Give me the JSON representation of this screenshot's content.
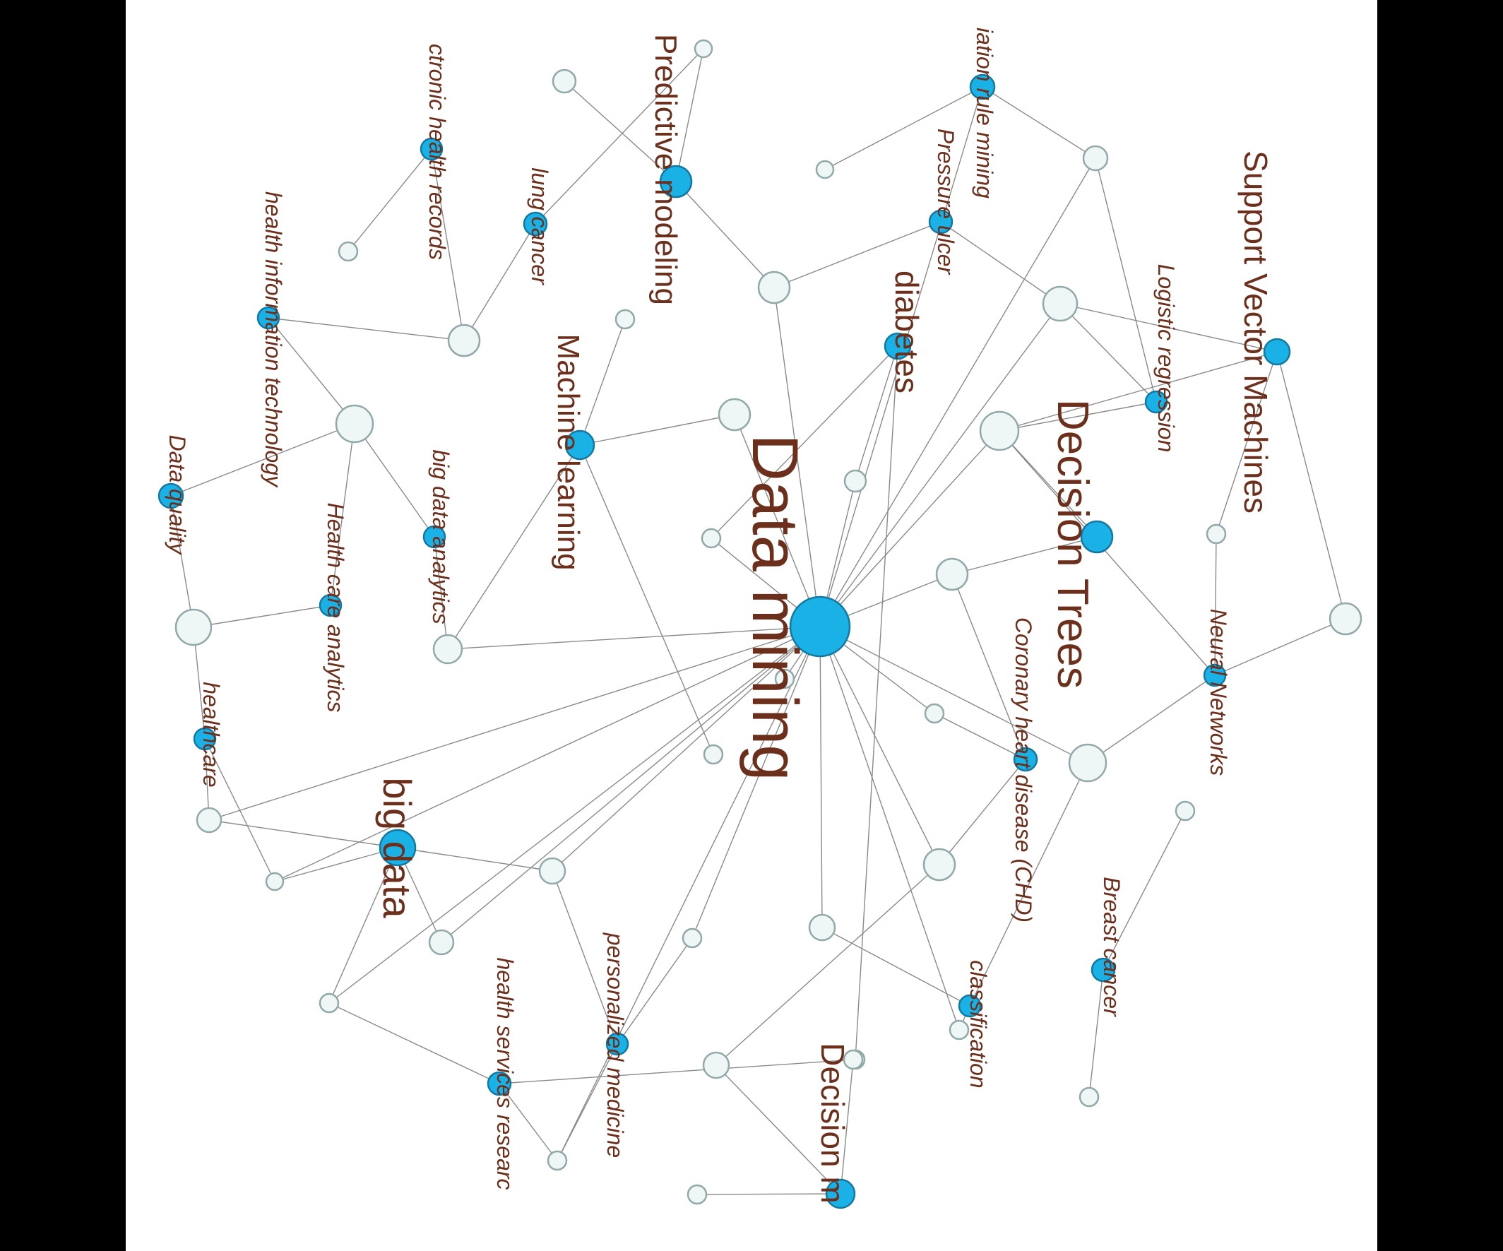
{
  "theme": {
    "background": "#000000",
    "canvas": "#ffffff",
    "node_hub": "#1ab2e6",
    "node_hub_stroke": "#1478a0",
    "node_leaf": "#eef6f6",
    "node_leaf_stroke": "#93a8a8",
    "edge": "#8a8a8a",
    "label": "#6b2f1c"
  },
  "nodes": [
    {
      "id": "dm",
      "label": "Data mining",
      "kind": "hub"
    },
    {
      "id": "dt",
      "label": "Decision Trees",
      "kind": "hub"
    },
    {
      "id": "svm",
      "label": "Support Vector Machines",
      "kind": "hub"
    },
    {
      "id": "ml",
      "label": "Machine learning",
      "kind": "hub"
    },
    {
      "id": "pm",
      "label": "Predictive modeling",
      "kind": "hub"
    },
    {
      "id": "bd",
      "label": "big data",
      "kind": "hub"
    },
    {
      "id": "dmk",
      "label": "Decision m",
      "kind": "hub"
    },
    {
      "id": "ar",
      "label": "iation rule mining",
      "kind": "hub"
    },
    {
      "id": "pu",
      "label": "Pressure ulcer",
      "kind": "hub"
    },
    {
      "id": "diab",
      "label": "diabetes",
      "kind": "hub"
    },
    {
      "id": "lr",
      "label": "Logistic regression",
      "kind": "hub"
    },
    {
      "id": "nn",
      "label": "Neural Networks",
      "kind": "hub"
    },
    {
      "id": "chd",
      "label": "Coronary heart disease (CHD)",
      "kind": "hub"
    },
    {
      "id": "bc",
      "label": "Breast cancer",
      "kind": "hub"
    },
    {
      "id": "cls",
      "label": "classification",
      "kind": "hub"
    },
    {
      "id": "lc",
      "label": "lung cancer",
      "kind": "hub"
    },
    {
      "id": "ehr",
      "label": "ctronic health records",
      "kind": "hub"
    },
    {
      "id": "hit",
      "label": "health information technology",
      "kind": "hub"
    },
    {
      "id": "bda",
      "label": "big data analytics",
      "kind": "hub"
    },
    {
      "id": "hca",
      "label": "Health care analytics",
      "kind": "hub"
    },
    {
      "id": "dq",
      "label": "Data quality",
      "kind": "hub"
    },
    {
      "id": "hc",
      "label": "healthcare",
      "kind": "hub"
    },
    {
      "id": "pmed",
      "label": "personalized medicine",
      "kind": "hub"
    },
    {
      "id": "hsr",
      "label": "health services researc",
      "kind": "hub"
    },
    {
      "id": "l01",
      "label": "",
      "kind": "leaf"
    },
    {
      "id": "l02",
      "label": "",
      "kind": "leaf"
    },
    {
      "id": "l03",
      "label": "",
      "kind": "leaf"
    },
    {
      "id": "l04",
      "label": "",
      "kind": "leaf"
    },
    {
      "id": "l05",
      "label": "",
      "kind": "leaf"
    },
    {
      "id": "l06",
      "label": "",
      "kind": "leaf"
    },
    {
      "id": "l07",
      "label": "",
      "kind": "leaf"
    },
    {
      "id": "l08",
      "label": "",
      "kind": "leaf"
    },
    {
      "id": "l09",
      "label": "",
      "kind": "leaf"
    },
    {
      "id": "l10",
      "label": "",
      "kind": "leaf"
    },
    {
      "id": "l11",
      "label": "",
      "kind": "leaf"
    },
    {
      "id": "l12",
      "label": "",
      "kind": "leaf"
    },
    {
      "id": "l13",
      "label": "",
      "kind": "leaf"
    },
    {
      "id": "l14",
      "label": "",
      "kind": "leaf"
    },
    {
      "id": "l15",
      "label": "",
      "kind": "leaf"
    },
    {
      "id": "l16",
      "label": "",
      "kind": "leaf"
    },
    {
      "id": "l17",
      "label": "",
      "kind": "leaf"
    },
    {
      "id": "l18",
      "label": "",
      "kind": "leaf"
    },
    {
      "id": "l19",
      "label": "",
      "kind": "leaf"
    },
    {
      "id": "l20",
      "label": "",
      "kind": "leaf"
    },
    {
      "id": "l21",
      "label": "",
      "kind": "leaf"
    },
    {
      "id": "l22",
      "label": "",
      "kind": "leaf"
    },
    {
      "id": "l23",
      "label": "",
      "kind": "leaf"
    },
    {
      "id": "l24",
      "label": "",
      "kind": "leaf"
    },
    {
      "id": "l25",
      "label": "",
      "kind": "leaf"
    },
    {
      "id": "l26",
      "label": "",
      "kind": "leaf"
    },
    {
      "id": "l27",
      "label": "",
      "kind": "leaf"
    },
    {
      "id": "l28",
      "label": "",
      "kind": "leaf"
    },
    {
      "id": "l29",
      "label": "",
      "kind": "leaf"
    },
    {
      "id": "l30",
      "label": "",
      "kind": "leaf"
    },
    {
      "id": "l31",
      "label": "",
      "kind": "leaf"
    },
    {
      "id": "l32",
      "label": "",
      "kind": "leaf"
    },
    {
      "id": "l33",
      "label": "",
      "kind": "leaf"
    },
    {
      "id": "l34",
      "label": "",
      "kind": "leaf"
    },
    {
      "id": "l35",
      "label": "",
      "kind": "leaf"
    },
    {
      "id": "l36",
      "label": "",
      "kind": "leaf"
    },
    {
      "id": "l37",
      "label": "",
      "kind": "leaf"
    },
    {
      "id": "l38",
      "label": "",
      "kind": "leaf"
    },
    {
      "id": "l39",
      "label": "",
      "kind": "leaf"
    }
  ],
  "edges": [
    [
      "dm",
      "l05"
    ],
    [
      "dm",
      "l06"
    ],
    [
      "dm",
      "l07"
    ],
    [
      "dm",
      "l04"
    ],
    [
      "dm",
      "l08"
    ],
    [
      "dm",
      "l10"
    ],
    [
      "dm",
      "l11"
    ],
    [
      "dm",
      "l12"
    ],
    [
      "dm",
      "l13"
    ],
    [
      "dm",
      "l14"
    ],
    [
      "dm",
      "l15"
    ],
    [
      "dm",
      "l16"
    ],
    [
      "dm",
      "l17"
    ],
    [
      "dm",
      "l18"
    ],
    [
      "dm",
      "l19"
    ],
    [
      "dm",
      "l20"
    ],
    [
      "dm",
      "l21"
    ],
    [
      "dm",
      "l22"
    ],
    [
      "dm",
      "l23"
    ],
    [
      "dm",
      "l24"
    ],
    [
      "dm",
      "l26"
    ],
    [
      "dm",
      "ar"
    ],
    [
      "dm",
      "l09"
    ],
    [
      "pm",
      "l01"
    ],
    [
      "pm",
      "l02"
    ],
    [
      "pm",
      "l05"
    ],
    [
      "ar",
      "l03"
    ],
    [
      "ar",
      "l04"
    ],
    [
      "pu",
      "l05"
    ],
    [
      "pu",
      "l26"
    ],
    [
      "diab",
      "l07"
    ],
    [
      "diab",
      "l08"
    ],
    [
      "diab",
      "l25"
    ],
    [
      "ml",
      "l06"
    ],
    [
      "ml",
      "l12"
    ],
    [
      "ml",
      "l27"
    ],
    [
      "ml",
      "l28"
    ],
    [
      "lr",
      "l26"
    ],
    [
      "lr",
      "l09"
    ],
    [
      "lr",
      "l04"
    ],
    [
      "svm",
      "l09"
    ],
    [
      "svm",
      "l29"
    ],
    [
      "svm",
      "l30"
    ],
    [
      "svm",
      "l26"
    ],
    [
      "dt",
      "l09"
    ],
    [
      "dt",
      "l10"
    ],
    [
      "nn",
      "l29"
    ],
    [
      "nn",
      "l19"
    ],
    [
      "nn",
      "l30"
    ],
    [
      "nn",
      "l09"
    ],
    [
      "chd",
      "l10"
    ],
    [
      "chd",
      "l17"
    ],
    [
      "chd",
      "l18"
    ],
    [
      "cls",
      "l19"
    ],
    [
      "cls",
      "l20"
    ],
    [
      "cls",
      "l16"
    ],
    [
      "bc",
      "l31"
    ],
    [
      "bc",
      "l32"
    ],
    [
      "dmk",
      "l33"
    ],
    [
      "dmk",
      "l34"
    ],
    [
      "dmk",
      "l35"
    ],
    [
      "lc",
      "l02"
    ],
    [
      "lc",
      "l36"
    ],
    [
      "ehr",
      "l36"
    ],
    [
      "ehr",
      "l37"
    ],
    [
      "hit",
      "l36"
    ],
    [
      "hit",
      "l38"
    ],
    [
      "bda",
      "l38"
    ],
    [
      "bda",
      "l12"
    ],
    [
      "hca",
      "l39"
    ],
    [
      "hca",
      "l38"
    ],
    [
      "dq",
      "l38"
    ],
    [
      "dq",
      "l39"
    ],
    [
      "hc",
      "l39"
    ],
    [
      "hc",
      "l14"
    ],
    [
      "hc",
      "l15"
    ],
    [
      "bd",
      "l14"
    ],
    [
      "bd",
      "l15"
    ],
    [
      "bd",
      "l13"
    ],
    [
      "bd",
      "l21"
    ],
    [
      "bd",
      "l24"
    ],
    [
      "pmed",
      "l22"
    ],
    [
      "pmed",
      "l23"
    ],
    [
      "pmed",
      "l13"
    ],
    [
      "hsr",
      "l23"
    ],
    [
      "hsr",
      "l24"
    ],
    [
      "hsr",
      "l25"
    ],
    [
      "l35",
      "l18"
    ]
  ]
}
